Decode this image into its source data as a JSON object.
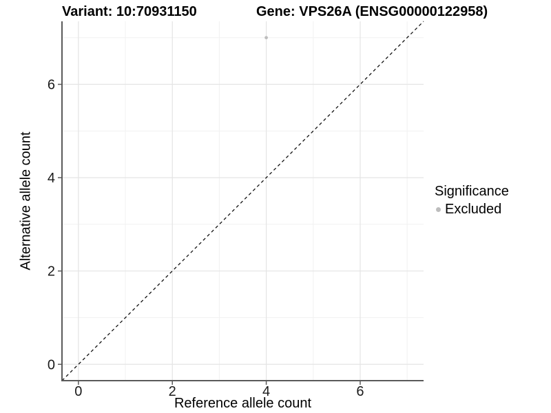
{
  "chart_data": {
    "type": "scatter",
    "title_left": "Variant: 10:70931150",
    "title_right": "Gene: VPS26A (ENSG00000122958)",
    "xlabel": "Reference allele count",
    "ylabel": "Alternative allele count",
    "xlim": [
      -0.35,
      7.35
    ],
    "ylim": [
      -0.35,
      7.35
    ],
    "x_major_ticks": [
      0,
      2,
      4,
      6
    ],
    "y_major_ticks": [
      0,
      2,
      4,
      6
    ],
    "x_minor_gridlines": [
      1,
      3,
      5,
      7
    ],
    "y_minor_gridlines": [
      1,
      3,
      5,
      7
    ],
    "grid": "major and minor light grey gridlines on white panel",
    "points": [
      {
        "x": 4,
        "y": 7,
        "series": "Excluded"
      }
    ],
    "identity_line": {
      "slope": 1,
      "intercept": 0,
      "style": "dashed",
      "color": "#111111"
    },
    "legend": {
      "title": "Significance",
      "position": "right",
      "entries": [
        {
          "label": "Excluded",
          "color": "#bdbdbd"
        }
      ]
    },
    "colors": {
      "point": "#bdbdbd",
      "grid_major": "#e4e4e4",
      "grid_minor": "#f1f1f1",
      "axis_line": "#595959",
      "tick": "#595959",
      "tick_label": "#1a1a1a",
      "title_text": "#000000"
    }
  }
}
